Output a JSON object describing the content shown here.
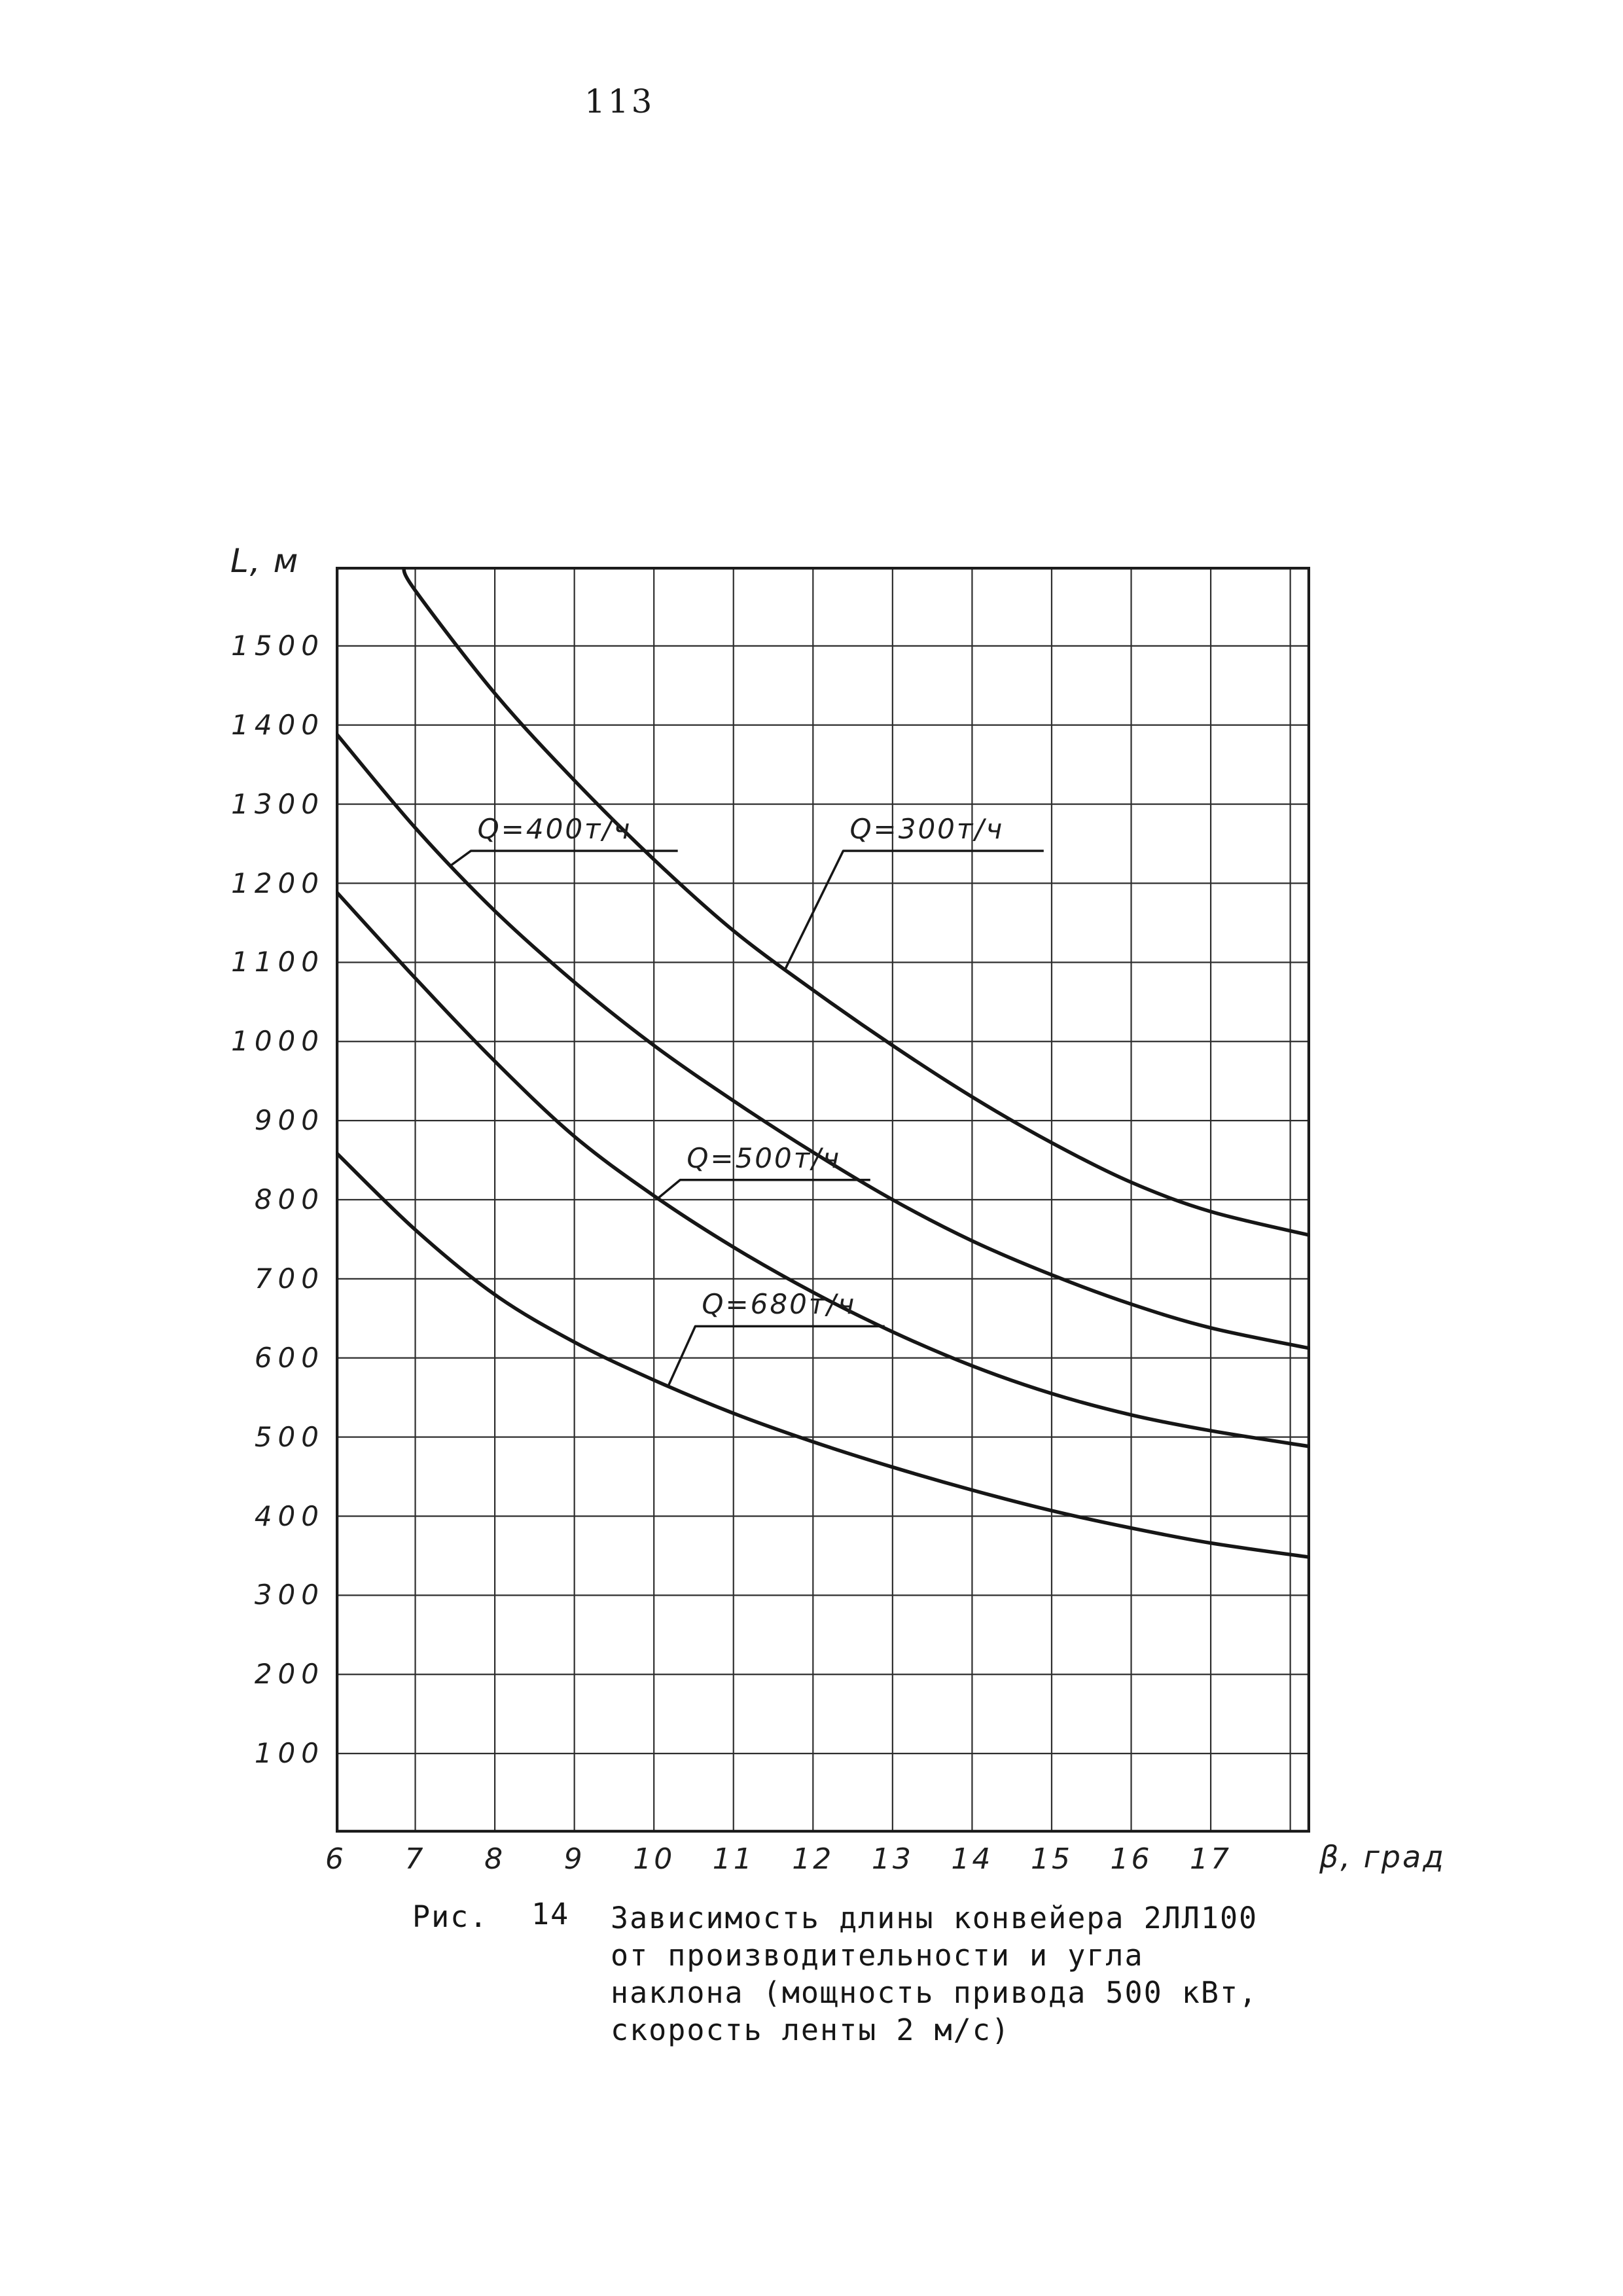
{
  "page": {
    "number": "113"
  },
  "axes": {
    "y_title": "L, м",
    "x_title": "β, град"
  },
  "caption": {
    "prefix": "Рис.",
    "number": "14",
    "lines": [
      "Зависимость длины конвейера 2ЛЛ100",
      "от производительности и угла",
      "наклона (мощность привода 500 кВт,",
      "скорость ленты 2 м/с)"
    ]
  },
  "chart_data": {
    "type": "line",
    "title": "",
    "xlabel": "β, град",
    "ylabel": "L, м",
    "xlim": [
      6,
      18.25
    ],
    "ylim": [
      0,
      1600
    ],
    "grid": true,
    "legend_position": "inline-annotations",
    "x_ticks": [
      6,
      7,
      8,
      9,
      10,
      11,
      12,
      13,
      14,
      15,
      16,
      17
    ],
    "x_gridlines": [
      7,
      8,
      9,
      10,
      11,
      12,
      13,
      14,
      15,
      16,
      17,
      18
    ],
    "y_ticks": [
      100,
      200,
      300,
      400,
      500,
      600,
      700,
      800,
      900,
      1000,
      1100,
      1200,
      1300,
      1400,
      1500
    ],
    "series": [
      {
        "name": "Q=300т/ч",
        "x": [
          6.85,
          7,
          8,
          9,
          10,
          11,
          12,
          13,
          14,
          15,
          16,
          17,
          18.25
        ],
        "y": [
          1600,
          1570,
          1440,
          1330,
          1230,
          1140,
          1065,
          995,
          930,
          872,
          822,
          785,
          755
        ]
      },
      {
        "name": "Q=400т/ч",
        "x": [
          6,
          7,
          8,
          9,
          10,
          11,
          12,
          13,
          14,
          15,
          16,
          17,
          18.25
        ],
        "y": [
          1390,
          1270,
          1165,
          1075,
          995,
          925,
          860,
          800,
          748,
          705,
          668,
          638,
          612
        ]
      },
      {
        "name": "Q=500т/ч",
        "x": [
          6,
          7,
          8,
          9,
          10,
          11,
          12,
          13,
          14,
          15,
          16,
          17,
          18.25
        ],
        "y": [
          1190,
          1080,
          975,
          880,
          805,
          740,
          683,
          633,
          590,
          555,
          528,
          508,
          488
        ]
      },
      {
        "name": "Q=680т/ч",
        "x": [
          6,
          7,
          8,
          9,
          10,
          11,
          12,
          13,
          14,
          15,
          16,
          17,
          18.25
        ],
        "y": [
          860,
          762,
          680,
          620,
          572,
          530,
          494,
          462,
          433,
          407,
          385,
          366,
          348
        ]
      }
    ],
    "annotations": [
      {
        "text": "Q=400т/ч",
        "series": 1,
        "underline_beta": [
          7.7,
          10.3
        ],
        "underline_L": 1241,
        "leader_beta": 7.45
      },
      {
        "text": "Q=300т/ч",
        "series": 0,
        "underline_beta": [
          12.38,
          14.9
        ],
        "underline_L": 1241,
        "leader_beta": 11.65
      },
      {
        "text": "Q=500т/ч",
        "series": 2,
        "underline_beta": [
          10.33,
          12.72
        ],
        "underline_L": 825,
        "leader_beta": 10.05
      },
      {
        "text": "Q=680т/ч",
        "series": 3,
        "underline_beta": [
          10.52,
          12.9
        ],
        "underline_L": 640,
        "leader_beta": 10.18
      }
    ]
  }
}
